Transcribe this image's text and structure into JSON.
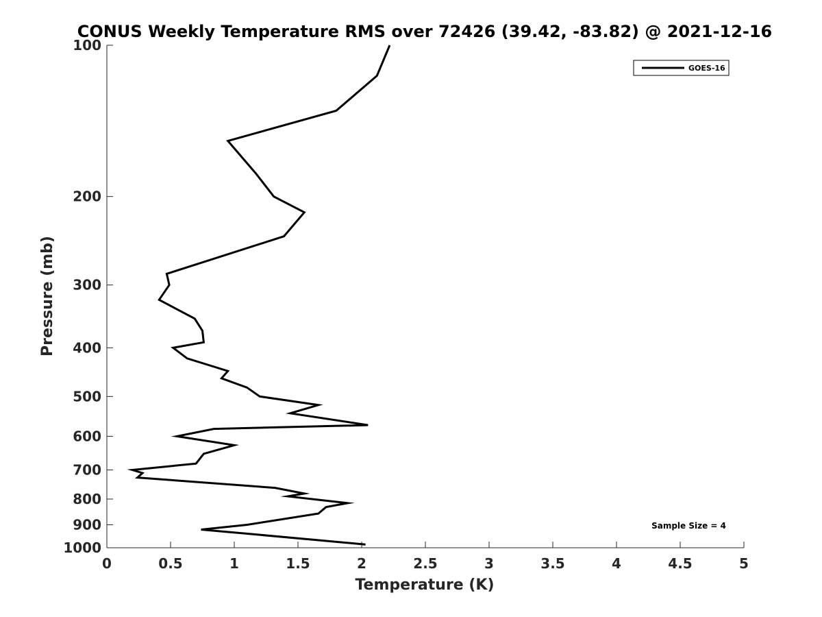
{
  "chart_data": {
    "type": "line",
    "title": "CONUS Weekly Temperature RMS over 72426 (39.42, -83.82) @ 2021-12-16",
    "xlabel": "Temperature (K)",
    "ylabel": "Pressure (mb)",
    "xlim": [
      0,
      5
    ],
    "ylim": [
      100,
      1000
    ],
    "y_scale": "log",
    "y_reversed": true,
    "x_ticks": [
      "0",
      "0.5",
      "1",
      "1.5",
      "2",
      "2.5",
      "3",
      "3.5",
      "4",
      "4.5",
      "5"
    ],
    "y_ticks": [
      "100",
      "200",
      "300",
      "400",
      "500",
      "600",
      "700",
      "800",
      "900",
      "1000"
    ],
    "grid": false,
    "legend_position": "top-right",
    "annotation": "Sample Size = 4",
    "series": [
      {
        "name": "GOES-16",
        "color": "#000000",
        "x": [
          2.22,
          2.12,
          1.8,
          0.95,
          1.17,
          1.31,
          1.55,
          1.39,
          0.47,
          0.49,
          0.41,
          0.69,
          0.75,
          0.76,
          0.52,
          0.63,
          0.95,
          0.9,
          1.1,
          1.2,
          1.66,
          1.44,
          2.05,
          0.84,
          0.55,
          1.0,
          0.76,
          0.7,
          0.2,
          0.28,
          0.24,
          1.32,
          1.55,
          1.42,
          1.89,
          1.72,
          1.66,
          1.1,
          0.74,
          1.15,
          2.03
        ],
        "y": [
          100,
          115,
          135,
          155,
          180,
          200,
          215,
          240,
          285,
          300,
          321,
          350,
          370,
          390,
          400,
          420,
          445,
          460,
          480,
          500,
          520,
          540,
          570,
          580,
          600,
          625,
          650,
          680,
          700,
          710,
          725,
          760,
          780,
          790,
          815,
          830,
          855,
          900,
          920,
          940,
          985
        ]
      }
    ]
  }
}
